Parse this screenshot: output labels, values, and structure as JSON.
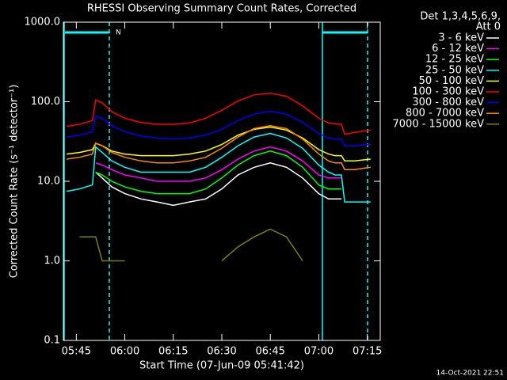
{
  "chart_data": {
    "type": "line",
    "title": "RHESSI Observing Summary Count Rates, Corrected",
    "xlabel": "Start Time (07-Jun-09 05:41:42)",
    "ylabel": "Corrected Count Rate (s⁻¹ detector⁻¹)",
    "annotations": [
      "Det 1,3,4,5,6,9,",
      "Att 0",
      "N"
    ],
    "footer": "14-Oct-2021 22:51",
    "log_y": true,
    "xlim": [
      "05:41",
      "07:19"
    ],
    "xticks": [
      "05:45",
      "06:00",
      "06:15",
      "06:30",
      "06:45",
      "07:00",
      "07:15"
    ],
    "ylim": [
      0.1,
      1000
    ],
    "yticks": [
      {
        "value": 0.1,
        "label": "0.1"
      },
      {
        "value": 1,
        "label": "1.0"
      },
      {
        "value": 10,
        "label": "10.0"
      },
      {
        "value": 100,
        "label": "100.0"
      },
      {
        "value": 1000,
        "label": "1000.0"
      }
    ],
    "x": [
      "05:42",
      "05:46",
      "05:50",
      "05:51",
      "05:53",
      "05:56",
      "06:00",
      "06:05",
      "06:10",
      "06:15",
      "06:20",
      "06:25",
      "06:30",
      "06:35",
      "06:40",
      "06:45",
      "06:50",
      "06:55",
      "07:00",
      "07:03",
      "07:05",
      "07:07",
      "07:08",
      "07:11",
      "07:16"
    ],
    "series": [
      {
        "name": "3 - 6 keV",
        "color": "#ffffff",
        "values": [
          null,
          null,
          null,
          13,
          11,
          8.5,
          7,
          6,
          5.5,
          5,
          5.5,
          6,
          8,
          12,
          15,
          17,
          15,
          11,
          7,
          6,
          6,
          6,
          null,
          null,
          null
        ]
      },
      {
        "name": "6 - 12 keV",
        "color": "#ff00ff",
        "values": [
          null,
          null,
          null,
          17,
          16,
          14,
          12,
          11,
          10,
          10,
          10,
          11,
          14,
          19,
          24,
          27,
          24,
          18,
          12,
          11,
          11,
          11,
          null,
          null,
          null
        ]
      },
      {
        "name": "12 - 25 keV",
        "color": "#00ff00",
        "values": [
          null,
          null,
          null,
          13,
          12,
          10,
          8.5,
          7.5,
          7,
          7,
          7,
          8,
          11,
          16,
          21,
          24,
          21,
          15,
          9,
          8,
          8,
          8,
          null,
          null,
          null
        ]
      },
      {
        "name": "25 - 50 keV",
        "color": "#00ffff",
        "values": [
          7.5,
          8,
          9,
          27,
          23,
          18,
          15,
          13,
          13,
          13,
          13,
          15,
          20,
          28,
          36,
          40,
          35,
          26,
          16,
          13,
          12,
          12,
          5.5,
          5.5,
          5.5
        ]
      },
      {
        "name": "50 - 100 keV",
        "color": "#ffff00",
        "values": [
          22,
          23,
          25,
          30,
          28,
          24,
          22,
          21,
          21,
          21,
          22,
          24,
          29,
          38,
          45,
          48,
          44,
          35,
          25,
          22,
          21,
          21,
          18,
          18,
          19
        ]
      },
      {
        "name": "100 - 300 keV",
        "color": "#ff0000",
        "values": [
          49,
          52,
          58,
          105,
          97,
          75,
          62,
          55,
          52,
          52,
          54,
          62,
          78,
          102,
          122,
          128,
          117,
          89,
          62,
          54,
          53,
          52,
          39,
          41,
          44
        ]
      },
      {
        "name": "300 - 800 keV",
        "color": "#0000ff",
        "values": [
          36,
          38,
          42,
          66,
          62,
          50,
          42,
          37,
          35,
          34,
          35,
          38,
          45,
          58,
          70,
          76,
          70,
          55,
          40,
          35,
          34,
          34,
          28,
          28,
          29
        ]
      },
      {
        "name": "800 - 7000 keV",
        "color": "#ff8c00",
        "values": [
          19,
          20,
          22,
          30,
          28,
          23,
          20,
          18,
          17,
          17,
          18,
          20,
          26,
          36,
          46,
          50,
          46,
          34,
          22,
          18,
          17,
          17,
          14,
          14,
          15
        ]
      },
      {
        "name": "7000 - 15000 keV",
        "color": "#808000",
        "values": [
          null,
          2,
          2,
          2,
          1,
          1,
          1,
          null,
          null,
          null,
          null,
          null,
          1,
          1.5,
          2,
          2.5,
          2,
          1,
          null,
          null,
          null,
          null,
          null,
          null,
          null
        ]
      }
    ]
  }
}
